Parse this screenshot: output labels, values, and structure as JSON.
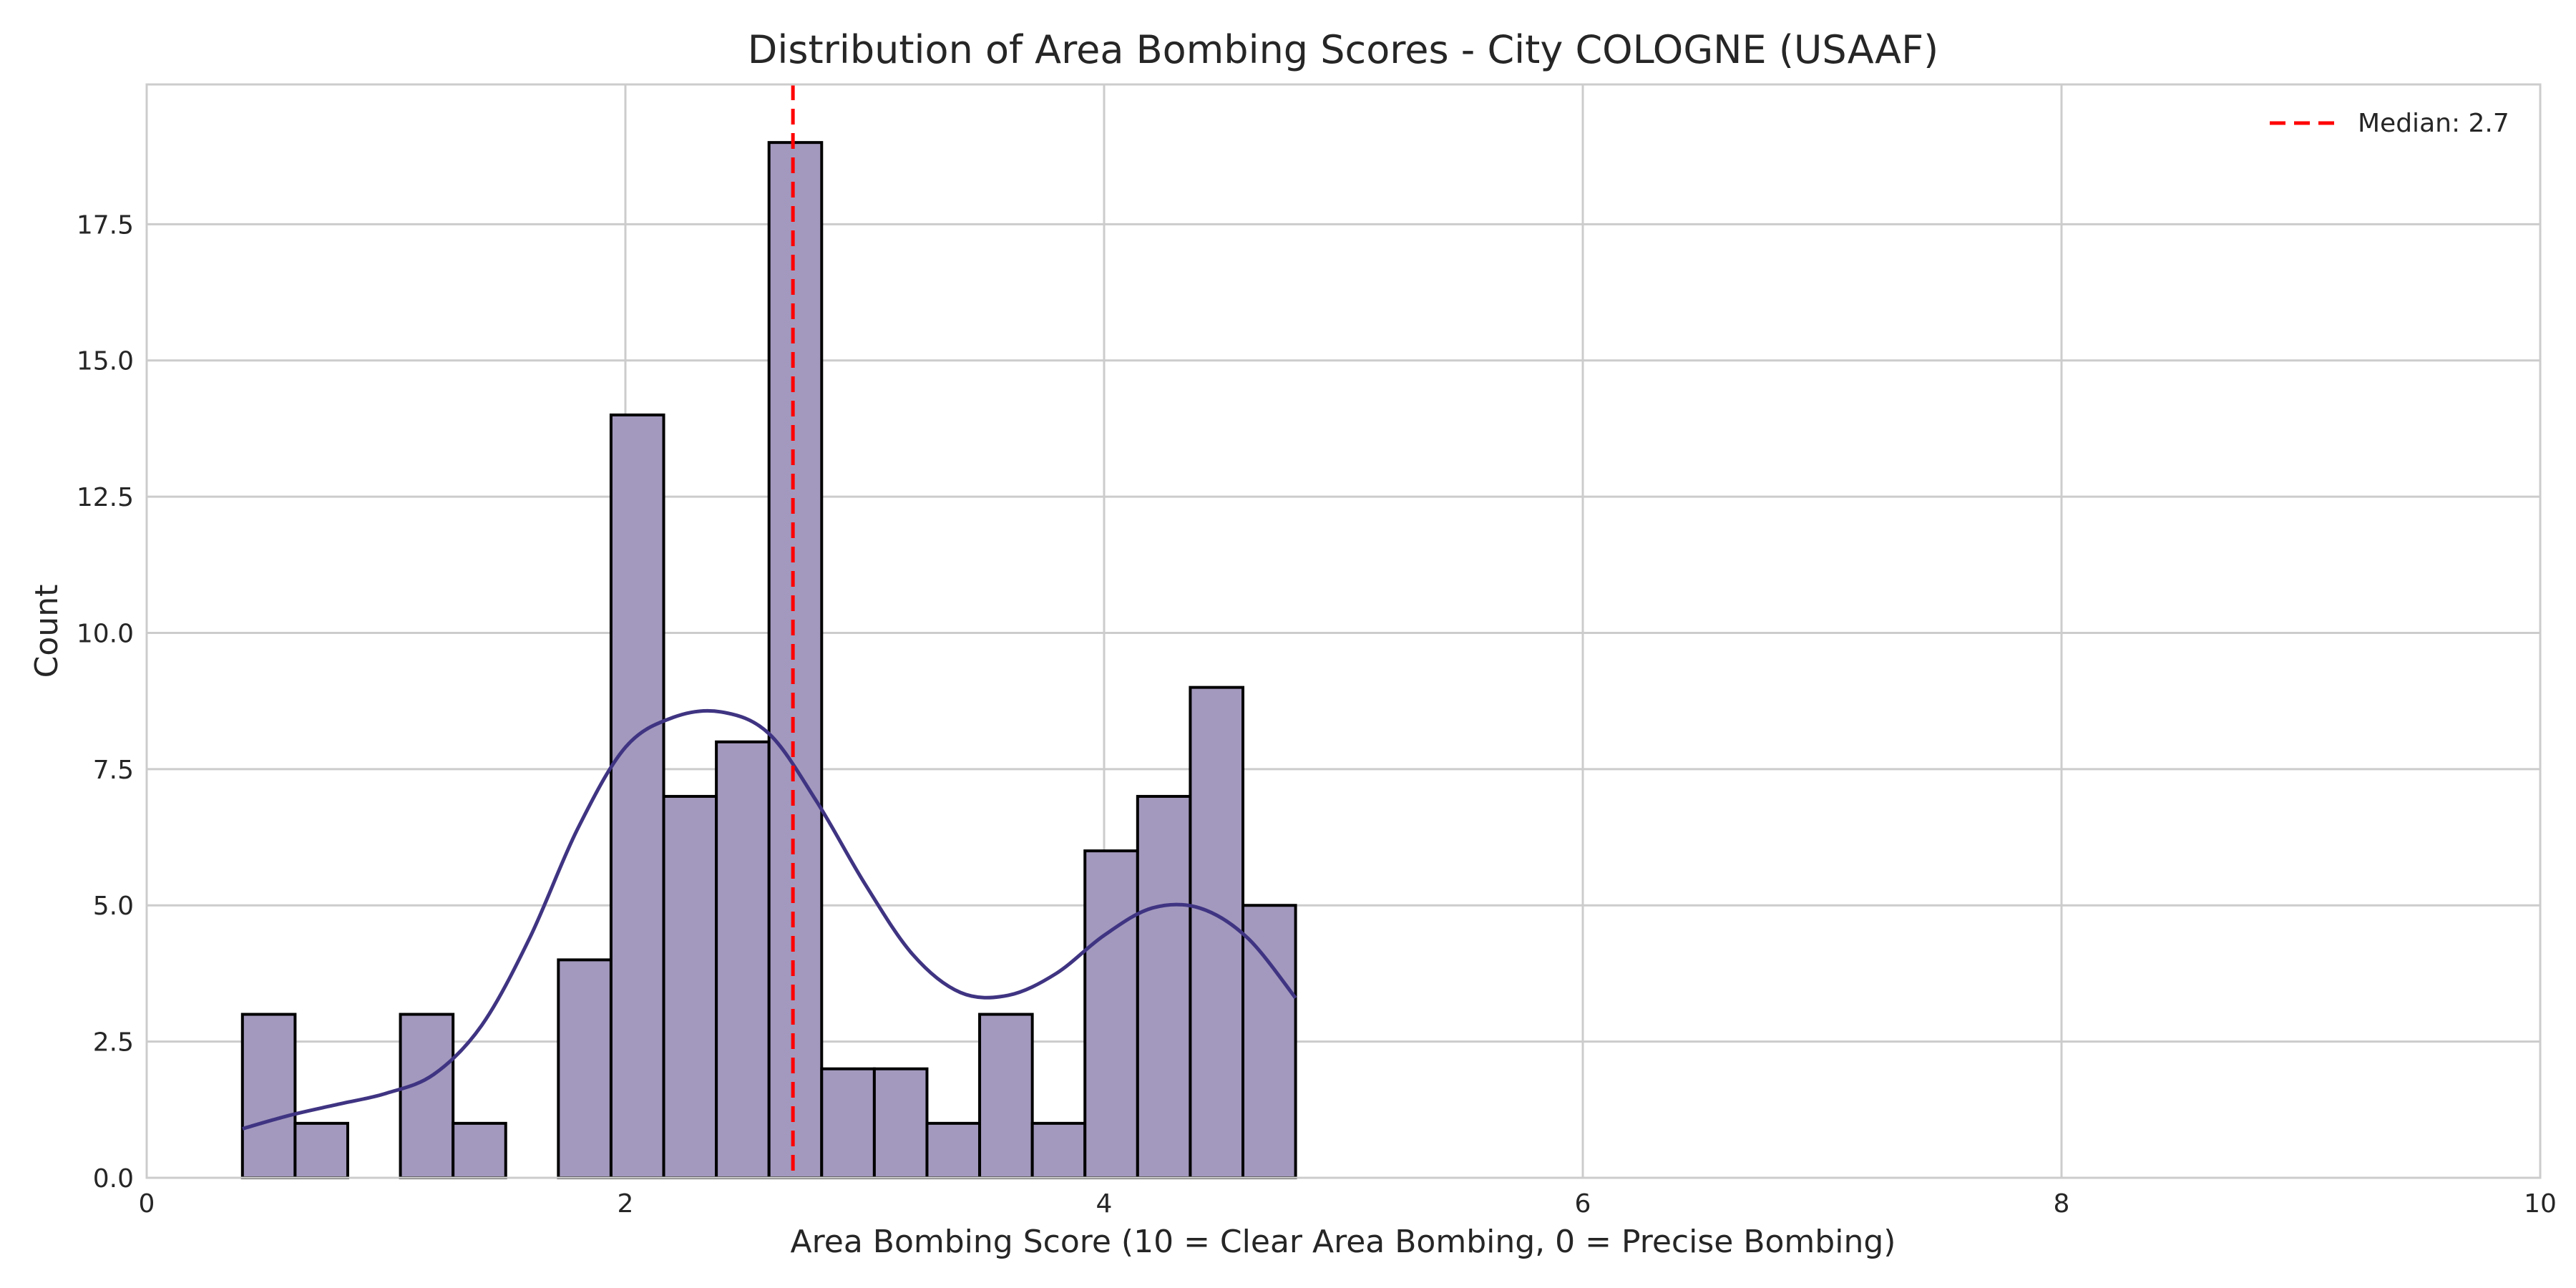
{
  "chart_data": {
    "type": "bar",
    "title": "Distribution of Area Bombing Scores - City COLOGNE (USAAF)",
    "xlabel": "Area Bombing Score (10 = Clear Area Bombing, 0 = Precise Bombing)",
    "ylabel": "Count",
    "xlim": [
      0,
      10
    ],
    "ylim": [
      0,
      20
    ],
    "xticks": [
      0,
      2,
      4,
      6,
      8,
      10
    ],
    "xtick_labels": [
      "0",
      "2",
      "4",
      "6",
      "8",
      "10"
    ],
    "yticks": [
      0,
      2.5,
      5,
      7.5,
      10,
      12.5,
      15,
      17.5
    ],
    "ytick_labels": [
      "0.0",
      "2.5",
      "5.0",
      "7.5",
      "10.0",
      "12.5",
      "15.0",
      "17.5"
    ],
    "grid": true,
    "legend_position": "top-right",
    "bins": [
      {
        "x0": 0.4,
        "x1": 0.62,
        "count": 3
      },
      {
        "x0": 0.62,
        "x1": 0.84,
        "count": 1
      },
      {
        "x0": 1.06,
        "x1": 1.28,
        "count": 3
      },
      {
        "x0": 1.28,
        "x1": 1.5,
        "count": 1
      },
      {
        "x0": 1.72,
        "x1": 1.94,
        "count": 4
      },
      {
        "x0": 1.94,
        "x1": 2.16,
        "count": 14
      },
      {
        "x0": 2.16,
        "x1": 2.38,
        "count": 7
      },
      {
        "x0": 2.38,
        "x1": 2.6,
        "count": 8
      },
      {
        "x0": 2.6,
        "x1": 2.82,
        "count": 19
      },
      {
        "x0": 2.82,
        "x1": 3.04,
        "count": 2
      },
      {
        "x0": 3.04,
        "x1": 3.26,
        "count": 2
      },
      {
        "x0": 3.26,
        "x1": 3.48,
        "count": 1
      },
      {
        "x0": 3.48,
        "x1": 3.7,
        "count": 3
      },
      {
        "x0": 3.7,
        "x1": 3.92,
        "count": 1
      },
      {
        "x0": 3.92,
        "x1": 4.14,
        "count": 6
      },
      {
        "x0": 4.14,
        "x1": 4.36,
        "count": 7
      },
      {
        "x0": 4.36,
        "x1": 4.58,
        "count": 9
      },
      {
        "x0": 4.58,
        "x1": 4.8,
        "count": 5
      }
    ],
    "kde": {
      "x": [
        0.4,
        0.6,
        0.8,
        1.0,
        1.2,
        1.4,
        1.6,
        1.8,
        2.0,
        2.2,
        2.4,
        2.6,
        2.8,
        3.0,
        3.2,
        3.4,
        3.6,
        3.8,
        4.0,
        4.2,
        4.4,
        4.6,
        4.8
      ],
      "y": [
        0.9,
        1.15,
        1.35,
        1.55,
        1.9,
        2.8,
        4.4,
        6.4,
        7.9,
        8.45,
        8.55,
        8.15,
        6.9,
        5.4,
        4.1,
        3.4,
        3.35,
        3.75,
        4.45,
        4.95,
        4.95,
        4.4,
        3.3
      ],
      "color": "#3f3482"
    },
    "median": {
      "value": 2.7,
      "label": "Median: 2.7",
      "color": "#ff0000"
    },
    "bar_fill": "#a399be",
    "bar_stroke": "#000000"
  }
}
